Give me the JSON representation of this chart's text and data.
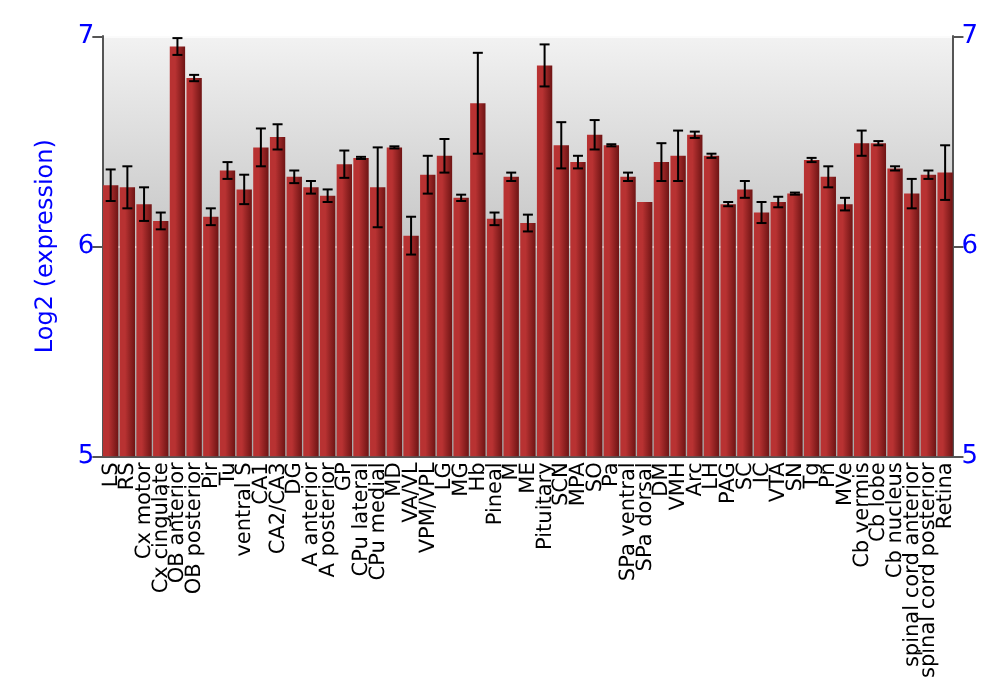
{
  "chart_data": {
    "type": "bar",
    "ylabel": "Log2 (expression)",
    "categories": [
      "LS",
      "RS",
      "Cx motor",
      "Cx cingulate",
      "OB anterior",
      "OB posterior",
      "Pir",
      "Tu",
      "ventral S",
      "CA1",
      "CA2/CA3",
      "DG",
      "A anterior",
      "A posterior",
      "GP",
      "CPu lateral",
      "CPu medial",
      "MD",
      "VA/VL",
      "VPM/VPL",
      "LG",
      "MG",
      "Hb",
      "Pineal",
      "M",
      "ME",
      "Pituitary",
      "SCN",
      "MPA",
      "SO",
      "Pa",
      "SPa ventral",
      "SPa dorsal",
      "DM",
      "VMH",
      "Arc",
      "LH",
      "PAG",
      "SC",
      "IC",
      "VTA",
      "SN",
      "Tg",
      "Pn",
      "MVe",
      "Cb vermis",
      "Cb lobe",
      "Cb nucleus",
      "spinal cord anterior",
      "spinal cord posterior",
      "Retina"
    ],
    "values": [
      6.29,
      6.28,
      6.2,
      6.12,
      6.95,
      6.8,
      6.14,
      6.36,
      6.27,
      6.47,
      6.52,
      6.33,
      6.28,
      6.24,
      6.39,
      6.42,
      6.28,
      6.47,
      6.05,
      6.34,
      6.43,
      6.23,
      6.68,
      6.13,
      6.33,
      6.11,
      6.86,
      6.48,
      6.4,
      6.53,
      6.48,
      6.33,
      6.21,
      6.4,
      6.43,
      6.53,
      6.43,
      6.2,
      6.27,
      6.16,
      6.21,
      6.25,
      6.41,
      6.33,
      6.2,
      6.49,
      6.49,
      6.37,
      6.25,
      6.34,
      6.35
    ],
    "errors": [
      0.075,
      0.1,
      0.08,
      0.04,
      0.04,
      0.015,
      0.04,
      0.04,
      0.07,
      0.09,
      0.06,
      0.03,
      0.03,
      0.03,
      0.065,
      0.005,
      0.19,
      0.005,
      0.09,
      0.09,
      0.08,
      0.015,
      0.24,
      0.03,
      0.02,
      0.04,
      0.1,
      0.11,
      0.03,
      0.07,
      0.005,
      0.02,
      null,
      0.09,
      0.12,
      0.015,
      0.01,
      0.01,
      0.04,
      0.05,
      0.025,
      0.005,
      0.01,
      0.05,
      0.03,
      0.06,
      0.01,
      0.01,
      0.07,
      0.02,
      0.13
    ],
    "color": "#b83232",
    "ylim": [
      5,
      7
    ],
    "yticks": [
      5,
      6,
      7
    ],
    "y2lim": [
      5,
      7
    ],
    "y2ticks": [
      5,
      6,
      7
    ],
    "grid": "y"
  }
}
